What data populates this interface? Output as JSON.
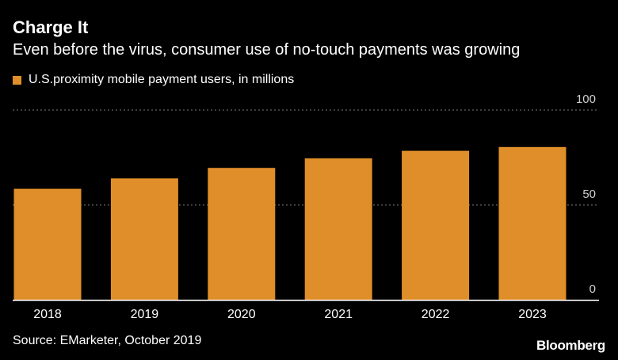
{
  "header": {
    "title": "Charge It",
    "subtitle": "Even before the virus, consumer use of no-touch payments was growing"
  },
  "legend": {
    "label": "U.S.proximity mobile payment users, in millions"
  },
  "footer": {
    "source": "Source: EMarketer, October 2019",
    "brand": "Bloomberg"
  },
  "colors": {
    "background": "#000000",
    "bar": "#e08e2a",
    "text": "#ffffff",
    "tick_text": "#d0d0d0",
    "grid": "#7a7a7a",
    "axis": "#ffffff"
  },
  "chart_data": {
    "type": "bar",
    "title": "Charge It",
    "subtitle": "Even before the virus, consumer use of no-touch payments was growing",
    "xlabel": "",
    "ylabel": "",
    "categories": [
      "2018",
      "2019",
      "2020",
      "2021",
      "2022",
      "2023"
    ],
    "series": [
      {
        "name": "U.S.proximity mobile payment users, in millions",
        "values": [
          58.5,
          64.0,
          69.5,
          74.5,
          78.5,
          80.5
        ]
      }
    ],
    "ylim": [
      0,
      100
    ],
    "yticks": [
      0,
      50,
      100
    ],
    "ytick_labels": [
      "0",
      "50",
      "100"
    ],
    "grid": true,
    "legend_position": "top-left"
  }
}
